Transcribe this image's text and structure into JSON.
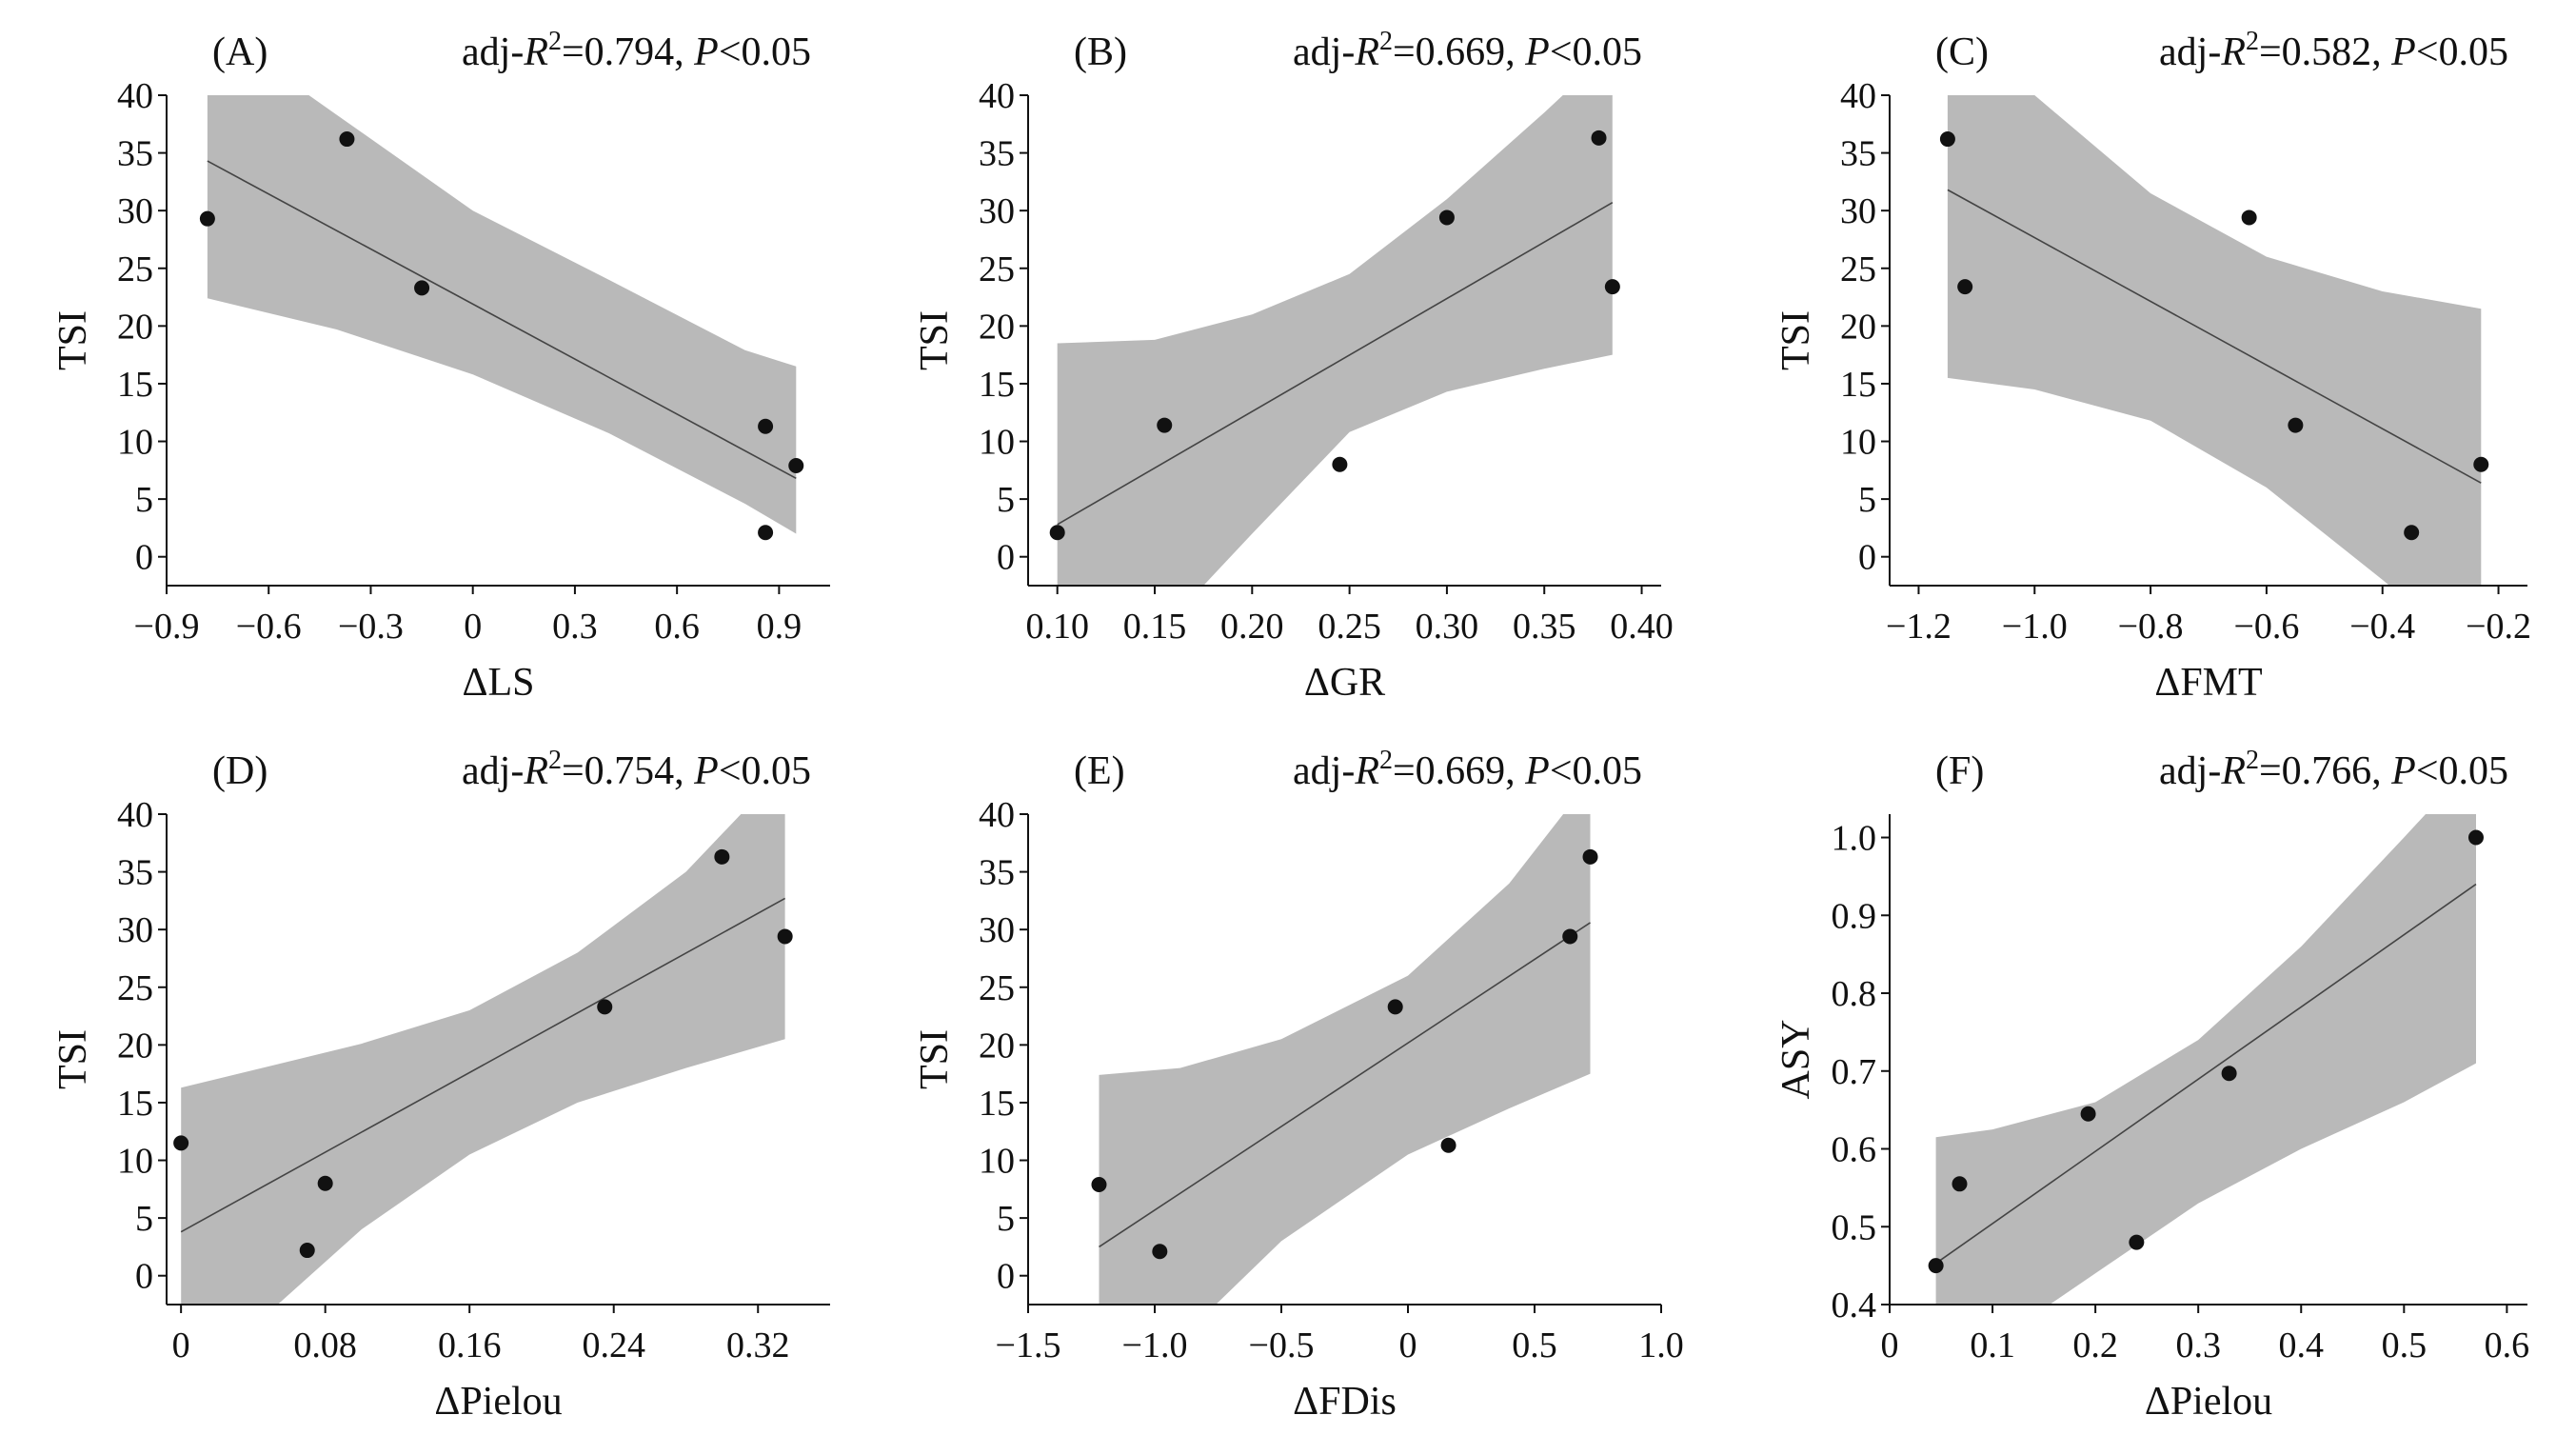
{
  "chart_data": [
    {
      "type": "scatter",
      "panel_label": "(A)",
      "annotation": {
        "prefix": "adj-",
        "r": "R",
        "sup": "2",
        "value": "=0.794, ",
        "p": "P",
        "ptail": "<0.05"
      },
      "xlabel": "ΔLS",
      "ylabel": "TSI",
      "xlim": [
        -0.9,
        1.05
      ],
      "ylim": [
        -2.5,
        40
      ],
      "xticks": [
        -0.9,
        -0.6,
        -0.3,
        0,
        0.3,
        0.6,
        0.9
      ],
      "xtick_labels": [
        "−0.9",
        "−0.6",
        "−0.3",
        "0",
        "0.3",
        "0.6",
        "0.9"
      ],
      "yticks": [
        0,
        5,
        10,
        15,
        20,
        25,
        30,
        35,
        40
      ],
      "ytick_labels": [
        "0",
        "5",
        "10",
        "15",
        "20",
        "25",
        "30",
        "35",
        "40"
      ],
      "points": [
        {
          "x": -0.78,
          "y": 29.3
        },
        {
          "x": -0.37,
          "y": 36.2
        },
        {
          "x": -0.15,
          "y": 23.3
        },
        {
          "x": 0.86,
          "y": 11.3
        },
        {
          "x": 0.95,
          "y": 7.9
        },
        {
          "x": 0.86,
          "y": 2.1
        }
      ],
      "fit": [
        [
          -0.78,
          34.3
        ],
        [
          0.95,
          6.8
        ]
      ],
      "band": {
        "x": [
          -0.78,
          -0.4,
          0,
          0.4,
          0.8,
          0.95
        ],
        "lower": [
          22.4,
          19.7,
          15.8,
          10.7,
          4.6,
          2.0
        ],
        "upper": [
          46.2,
          38.3,
          30.0,
          24.0,
          17.9,
          16.5
        ]
      }
    },
    {
      "type": "scatter",
      "panel_label": "(B)",
      "annotation": {
        "prefix": "adj-",
        "r": "R",
        "sup": "2",
        "value": "=0.669, ",
        "p": "P",
        "ptail": "<0.05"
      },
      "xlabel": "ΔGR",
      "ylabel": "TSI",
      "xlim": [
        0.085,
        0.41
      ],
      "ylim": [
        -2.5,
        40
      ],
      "xticks": [
        0.1,
        0.15,
        0.2,
        0.25,
        0.3,
        0.35,
        0.4
      ],
      "xtick_labels": [
        "0.10",
        "0.15",
        "0.20",
        "0.25",
        "0.30",
        "0.35",
        "0.40"
      ],
      "yticks": [
        0,
        5,
        10,
        15,
        20,
        25,
        30,
        35,
        40
      ],
      "ytick_labels": [
        "0",
        "5",
        "10",
        "15",
        "20",
        "25",
        "30",
        "35",
        "40"
      ],
      "points": [
        {
          "x": 0.1,
          "y": 2.1
        },
        {
          "x": 0.155,
          "y": 11.4
        },
        {
          "x": 0.245,
          "y": 8.0
        },
        {
          "x": 0.3,
          "y": 29.4
        },
        {
          "x": 0.378,
          "y": 36.3
        },
        {
          "x": 0.385,
          "y": 23.4
        }
      ],
      "fit": [
        [
          0.1,
          2.8
        ],
        [
          0.385,
          30.7
        ]
      ],
      "band": {
        "x": [
          0.1,
          0.15,
          0.2,
          0.25,
          0.3,
          0.35,
          0.385
        ],
        "lower": [
          -13.0,
          -7.0,
          2.0,
          10.8,
          14.3,
          16.3,
          17.5
        ],
        "upper": [
          18.5,
          18.8,
          21.0,
          24.5,
          31.0,
          38.5,
          44.0
        ]
      }
    },
    {
      "type": "scatter",
      "panel_label": "(C)",
      "annotation": {
        "prefix": "adj-",
        "r": "R",
        "sup": "2",
        "value": "=0.582, ",
        "p": "P",
        "ptail": "<0.05"
      },
      "xlabel": "ΔFMT",
      "ylabel": "TSI",
      "xlim": [
        -1.25,
        -0.15
      ],
      "ylim": [
        -2.5,
        40
      ],
      "xticks": [
        -1.2,
        -1.0,
        -0.8,
        -0.6,
        -0.4,
        -0.2
      ],
      "xtick_labels": [
        "−1.2",
        "−1.0",
        "−0.8",
        "−0.6",
        "−0.4",
        "−0.2"
      ],
      "yticks": [
        0,
        5,
        10,
        15,
        20,
        25,
        30,
        35,
        40
      ],
      "ytick_labels": [
        "0",
        "5",
        "10",
        "15",
        "20",
        "25",
        "30",
        "35",
        "40"
      ],
      "points": [
        {
          "x": -1.15,
          "y": 36.2
        },
        {
          "x": -1.12,
          "y": 23.4
        },
        {
          "x": -0.63,
          "y": 29.4
        },
        {
          "x": -0.55,
          "y": 11.4
        },
        {
          "x": -0.35,
          "y": 2.1
        },
        {
          "x": -0.23,
          "y": 8.0
        }
      ],
      "fit": [
        [
          -1.15,
          31.8
        ],
        [
          -0.23,
          6.4
        ]
      ],
      "band": {
        "x": [
          -1.15,
          -1.0,
          -0.8,
          -0.6,
          -0.4,
          -0.23
        ],
        "lower": [
          15.5,
          14.5,
          11.8,
          6.0,
          -2.0,
          -9.0
        ],
        "upper": [
          48.0,
          40.0,
          31.5,
          26.0,
          23.0,
          21.5
        ]
      }
    },
    {
      "type": "scatter",
      "panel_label": "(D)",
      "annotation": {
        "prefix": "adj-",
        "r": "R",
        "sup": "2",
        "value": "=0.754, ",
        "p": "P",
        "ptail": "<0.05"
      },
      "xlabel": "ΔPielou",
      "ylabel": "TSI",
      "xlim": [
        -0.008,
        0.36
      ],
      "ylim": [
        -2.5,
        40
      ],
      "xticks": [
        0,
        0.08,
        0.16,
        0.24,
        0.32
      ],
      "xtick_labels": [
        "0",
        "0.08",
        "0.16",
        "0.24",
        "0.32"
      ],
      "yticks": [
        0,
        5,
        10,
        15,
        20,
        25,
        30,
        35,
        40
      ],
      "ytick_labels": [
        "0",
        "5",
        "10",
        "15",
        "20",
        "25",
        "30",
        "35",
        "40"
      ],
      "points": [
        {
          "x": 0.0,
          "y": 11.5
        },
        {
          "x": 0.07,
          "y": 2.2
        },
        {
          "x": 0.08,
          "y": 8.0
        },
        {
          "x": 0.235,
          "y": 23.3
        },
        {
          "x": 0.3,
          "y": 36.3
        },
        {
          "x": 0.335,
          "y": 29.4
        }
      ],
      "fit": [
        [
          0.0,
          3.8
        ],
        [
          0.335,
          32.7
        ]
      ],
      "band": {
        "x": [
          0.0,
          0.05,
          0.1,
          0.16,
          0.22,
          0.28,
          0.335
        ],
        "lower": [
          -8.7,
          -3.0,
          4.0,
          10.5,
          15.0,
          18.0,
          20.5
        ],
        "upper": [
          16.3,
          18.2,
          20.1,
          23.0,
          28.0,
          35.0,
          44.0
        ]
      }
    },
    {
      "type": "scatter",
      "panel_label": "(E)",
      "annotation": {
        "prefix": "adj-",
        "r": "R",
        "sup": "2",
        "value": "=0.669, ",
        "p": "P",
        "ptail": "<0.05"
      },
      "xlabel": "ΔFDis",
      "ylabel": "TSI",
      "xlim": [
        -1.5,
        1.0
      ],
      "ylim": [
        -2.5,
        40
      ],
      "xticks": [
        -1.5,
        -1.0,
        -0.5,
        0,
        0.5,
        1.0
      ],
      "xtick_labels": [
        "−1.5",
        "−1.0",
        "−0.5",
        "0",
        "0.5",
        "1.0"
      ],
      "yticks": [
        0,
        5,
        10,
        15,
        20,
        25,
        30,
        35,
        40
      ],
      "ytick_labels": [
        "0",
        "5",
        "10",
        "15",
        "20",
        "25",
        "30",
        "35",
        "40"
      ],
      "points": [
        {
          "x": -1.22,
          "y": 7.9
        },
        {
          "x": -0.98,
          "y": 2.1
        },
        {
          "x": -0.05,
          "y": 23.3
        },
        {
          "x": 0.16,
          "y": 11.3
        },
        {
          "x": 0.64,
          "y": 29.4
        },
        {
          "x": 0.72,
          "y": 36.3
        }
      ],
      "fit": [
        [
          -1.22,
          2.5
        ],
        [
          0.72,
          30.6
        ]
      ],
      "band": {
        "x": [
          -1.22,
          -0.9,
          -0.5,
          0,
          0.4,
          0.72
        ],
        "lower": [
          -12.5,
          -5.5,
          3.0,
          10.5,
          14.5,
          17.5
        ],
        "upper": [
          17.4,
          18.0,
          20.5,
          26.0,
          34.0,
          43.0
        ]
      }
    },
    {
      "type": "scatter",
      "panel_label": "(F)",
      "annotation": {
        "prefix": "adj-",
        "r": "R",
        "sup": "2",
        "value": "=0.766, ",
        "p": "P",
        "ptail": "<0.05"
      },
      "xlabel": "ΔPielou",
      "ylabel": "ASY",
      "xlim": [
        0,
        0.62
      ],
      "ylim": [
        0.4,
        1.03
      ],
      "xticks": [
        0,
        0.1,
        0.2,
        0.3,
        0.4,
        0.5,
        0.6
      ],
      "xtick_labels": [
        "0",
        "0.1",
        "0.2",
        "0.3",
        "0.4",
        "0.5",
        "0.6"
      ],
      "yticks": [
        0.4,
        0.5,
        0.6,
        0.7,
        0.8,
        0.9,
        1.0
      ],
      "ytick_labels": [
        "0.4",
        "0.5",
        "0.6",
        "0.7",
        "0.8",
        "0.9",
        "1.0"
      ],
      "points": [
        {
          "x": 0.045,
          "y": 0.45
        },
        {
          "x": 0.068,
          "y": 0.555
        },
        {
          "x": 0.193,
          "y": 0.645
        },
        {
          "x": 0.24,
          "y": 0.48
        },
        {
          "x": 0.33,
          "y": 0.697
        },
        {
          "x": 0.57,
          "y": 1.0
        }
      ],
      "fit": [
        [
          0.045,
          0.453
        ],
        [
          0.57,
          0.94
        ]
      ],
      "band": {
        "x": [
          0.045,
          0.1,
          0.2,
          0.3,
          0.4,
          0.5,
          0.57
        ],
        "lower": [
          0.29,
          0.35,
          0.44,
          0.53,
          0.6,
          0.66,
          0.71
        ],
        "upper": [
          0.615,
          0.625,
          0.66,
          0.74,
          0.86,
          1.0,
          1.1
        ]
      }
    }
  ]
}
